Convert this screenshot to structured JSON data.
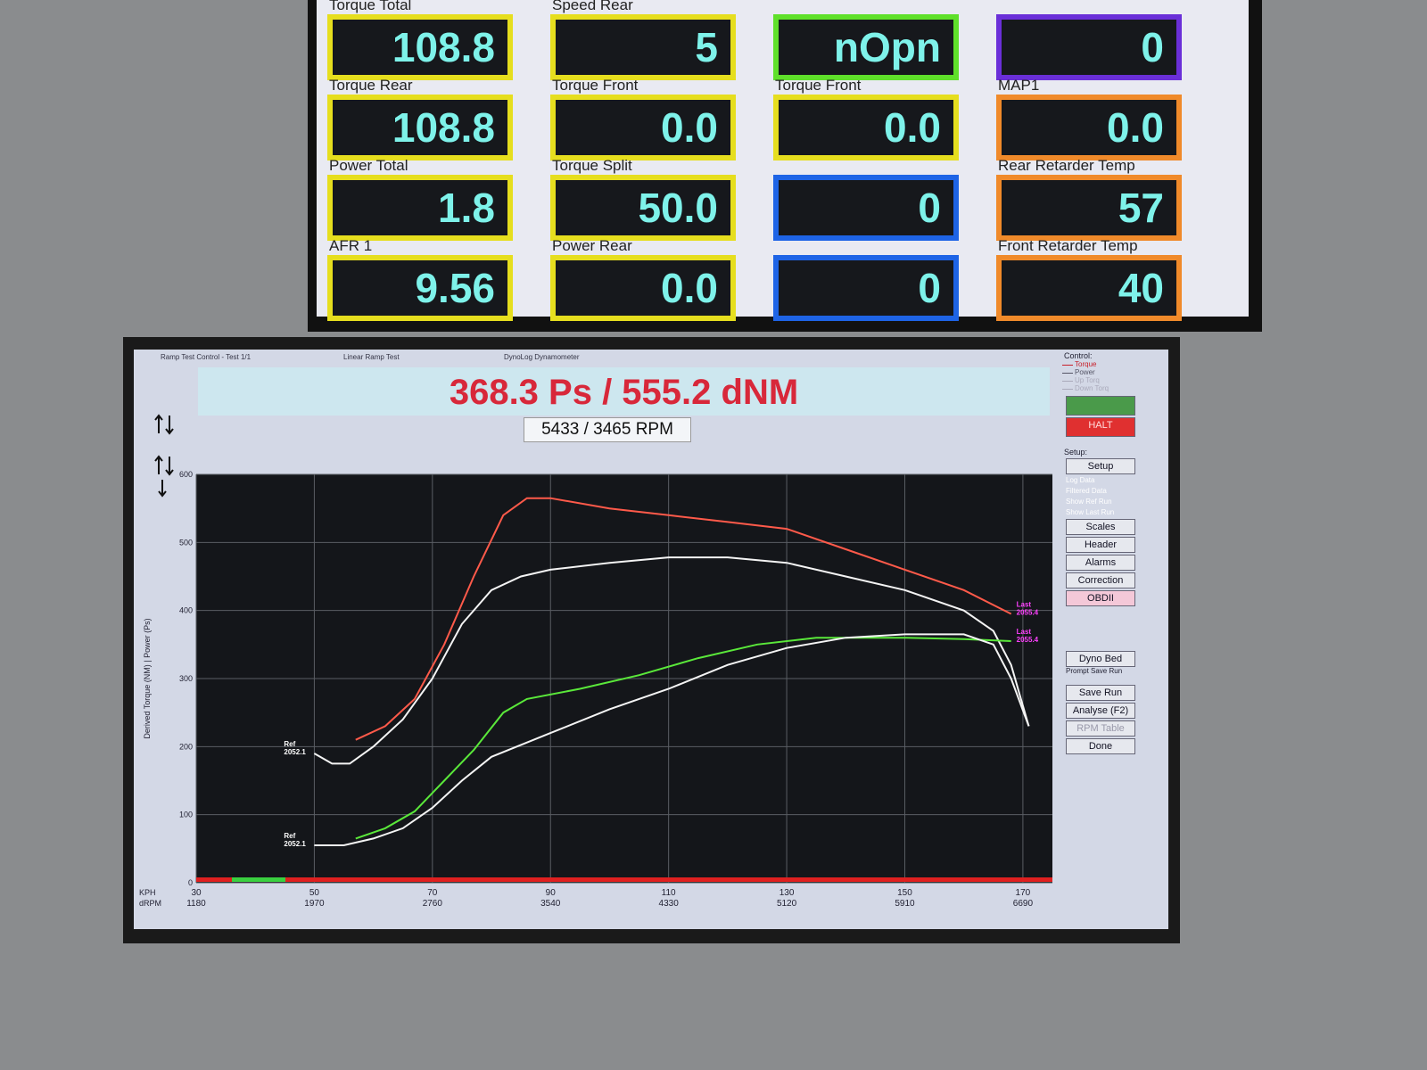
{
  "top_monitor": {
    "gauges": [
      {
        "label": "Torque Total",
        "value": "108.8",
        "color": "#e6de1e"
      },
      {
        "label": "Speed Rear",
        "value": "5",
        "color": "#e6de1e"
      },
      {
        "value": "nOpn",
        "color": "#5fe02a"
      },
      {
        "value": "0",
        "color": "#6a2fd8"
      },
      {
        "label": "Torque Rear",
        "value": "108.8",
        "color": "#e6de1e"
      },
      {
        "label": "Torque Front",
        "value": "0.0",
        "color": "#e6de1e"
      },
      {
        "label": "Torque Front",
        "value": "0.0",
        "color": "#e6de1e"
      },
      {
        "label": "MAP1",
        "value": "0.0",
        "color": "#f08a2a"
      },
      {
        "label": "Power Total",
        "value": "1.8",
        "color": "#e6de1e"
      },
      {
        "label": "Torque Split",
        "value": "50.0",
        "color": "#e6de1e"
      },
      {
        "value": "0",
        "color": "#1e64e6"
      },
      {
        "label": "Rear Retarder Temp",
        "value": "57",
        "color": "#f08a2a"
      },
      {
        "label": "AFR 1",
        "value": "9.56",
        "color": "#e6de1e"
      },
      {
        "label": "Power Rear",
        "value": "0.0",
        "color": "#e6de1e"
      },
      {
        "value": "0",
        "color": "#1e64e6"
      },
      {
        "label": "Front Retarder Temp",
        "value": "40",
        "color": "#f08a2a"
      }
    ]
  },
  "dyno_window": {
    "title_left": "Ramp Test Control - Test 1/1",
    "title_mid": "Linear Ramp Test",
    "title_right": "DynoLog Dynamometer",
    "headline": "368.3 Ps  / 555.2 dNM",
    "rpm_readout": "5433 / 3465 RPM"
  },
  "control_panel": {
    "control_heading": "Control:",
    "legend": [
      {
        "text": "Torque",
        "color": "#c8202a"
      },
      {
        "text": "Power",
        "color": "#556"
      },
      {
        "text": "Up Torq",
        "color": "#aab"
      },
      {
        "text": "Down Torq",
        "color": "#aab"
      }
    ],
    "halt": "HALT",
    "setup_heading": "Setup:",
    "setup_button": "Setup",
    "checkboxes": [
      "Log Data",
      "Filtered Data",
      "Show Ref Run",
      "Show Last Run"
    ],
    "buttons": [
      "Scales",
      "Header",
      "Alarms",
      "Correction",
      "OBDII"
    ],
    "dyno_bed": "Dyno Bed",
    "prompt": "Prompt Save Run",
    "actions": [
      "Save Run",
      "Analyse (F2)",
      "RPM Table",
      "Done"
    ]
  },
  "chart_data": {
    "type": "line",
    "y_label": "Derived Torque (NM) | Power (Ps)",
    "x_row_label": "KPH",
    "x2_row_label": "dRPM",
    "xlim": [
      30,
      175
    ],
    "xticks": [
      30,
      50,
      70,
      90,
      110,
      130,
      150,
      170
    ],
    "x2_labels": [
      "1180",
      "1970",
      "2760",
      "3540",
      "4330",
      "5120",
      "5910",
      "6690"
    ],
    "ylim": [
      0,
      600
    ],
    "yticks": [
      0,
      100,
      200,
      300,
      400,
      500,
      600
    ],
    "grid": true,
    "series": [
      {
        "color": "#ff5a4a",
        "tag_label": "Last",
        "tag_value": "2055.4",
        "tag_at": "end",
        "x": [
          57,
          62,
          67,
          72,
          77,
          82,
          86,
          90,
          100,
          110,
          120,
          130,
          140,
          150,
          160,
          168
        ],
        "values": [
          210,
          230,
          270,
          350,
          450,
          540,
          565,
          565,
          550,
          540,
          530,
          520,
          490,
          460,
          430,
          395
        ]
      },
      {
        "color": "#f4f4f4",
        "tag_label": "Ref",
        "tag_value": "2052.1",
        "tag_at": "start",
        "x": [
          50,
          53,
          56,
          60,
          65,
          70,
          75,
          80,
          85,
          90,
          100,
          110,
          120,
          130,
          140,
          150,
          160,
          165,
          168,
          171
        ],
        "values": [
          190,
          175,
          175,
          200,
          240,
          300,
          380,
          430,
          450,
          460,
          470,
          478,
          478,
          470,
          450,
          430,
          400,
          370,
          320,
          230
        ]
      },
      {
        "color": "#5ae83a",
        "tag_label": "Last",
        "tag_value": "2055.4",
        "tag_at": "end",
        "x": [
          57,
          62,
          67,
          72,
          77,
          82,
          86,
          95,
          105,
          115,
          125,
          135,
          150,
          160,
          168
        ],
        "values": [
          65,
          80,
          105,
          150,
          195,
          250,
          270,
          285,
          305,
          330,
          350,
          360,
          360,
          358,
          355
        ]
      },
      {
        "color": "#f4f4f4",
        "tag_label": "Ref",
        "tag_value": "2052.1",
        "tag_at": "start",
        "x": [
          50,
          55,
          60,
          65,
          70,
          75,
          80,
          90,
          100,
          110,
          120,
          130,
          140,
          150,
          160,
          165,
          168,
          171
        ],
        "values": [
          55,
          55,
          65,
          80,
          110,
          150,
          185,
          220,
          255,
          285,
          320,
          345,
          360,
          365,
          365,
          350,
          300,
          230
        ]
      }
    ]
  }
}
